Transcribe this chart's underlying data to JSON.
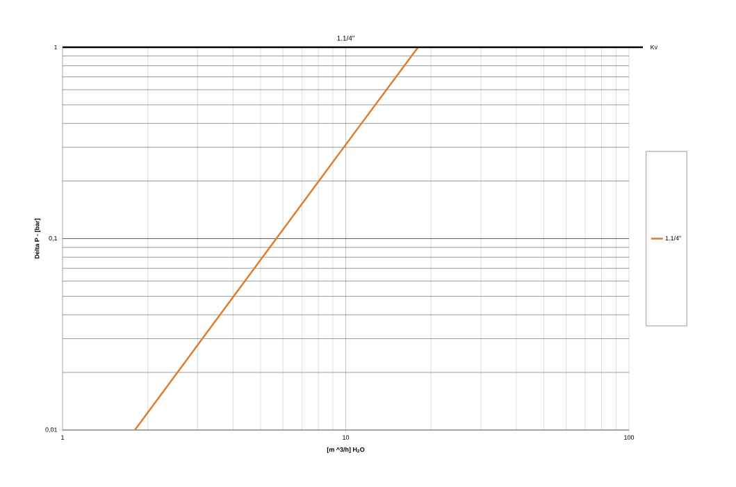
{
  "chart_data": {
    "type": "line",
    "title": "1.1/4\"",
    "xlabel": "[m ^3/h] H$_{2}$O",
    "ylabel": "Delta P - [bar]",
    "log": "xy",
    "xlim": [
      1,
      100
    ],
    "ylim": [
      0.01,
      1
    ],
    "xticks": [
      1,
      10,
      100
    ],
    "yticks": [
      {
        "value": 0.01,
        "label": "0,01"
      },
      {
        "value": 0.1,
        "label": "0,1"
      },
      1
    ],
    "grid": true,
    "legend": "right",
    "marker": "none",
    "line_style": "solid",
    "ref_lines": [
      {
        "axis": "y",
        "value": 1,
        "label": "Kv",
        "color": "#000000"
      }
    ],
    "series": [
      {
        "name": "1.1/4\"",
        "color": "#e07b2c",
        "x": [
          1.8,
          10,
          18
        ],
        "values": [
          0.01,
          0.31,
          1
        ]
      }
    ]
  }
}
